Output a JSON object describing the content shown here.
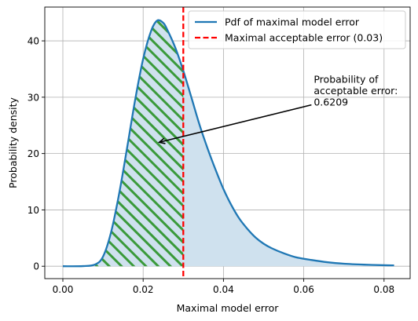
{
  "chart_data": {
    "type": "area",
    "title": "",
    "xlabel": "Maximal model error",
    "ylabel": "Probability density",
    "xlim": [
      -0.0045,
      0.0865
    ],
    "ylim": [
      -2.2,
      46
    ],
    "xticks": [
      0.0,
      0.02,
      0.04,
      0.06,
      0.08
    ],
    "xtick_labels": [
      "0.00",
      "0.02",
      "0.04",
      "0.06",
      "0.08"
    ],
    "yticks": [
      0,
      10,
      20,
      30,
      40
    ],
    "ytick_labels": [
      "0",
      "10",
      "20",
      "30",
      "40"
    ],
    "grid": true,
    "legend_position": "upper right",
    "series": [
      {
        "name": "Pdf of maximal model error",
        "color": "#1f77b4",
        "points": [
          [
            0.0,
            0.0
          ],
          [
            0.005,
            0.02
          ],
          [
            0.008,
            0.3
          ],
          [
            0.01,
            1.7
          ],
          [
            0.012,
            6.0
          ],
          [
            0.014,
            12.8
          ],
          [
            0.016,
            21.0
          ],
          [
            0.018,
            29.5
          ],
          [
            0.02,
            36.8
          ],
          [
            0.022,
            41.8
          ],
          [
            0.0235,
            43.6
          ],
          [
            0.025,
            43.2
          ],
          [
            0.026,
            42.0
          ],
          [
            0.028,
            38.8
          ],
          [
            0.03,
            34.7
          ],
          [
            0.032,
            30.0
          ],
          [
            0.034,
            25.2
          ],
          [
            0.036,
            21.0
          ],
          [
            0.038,
            17.2
          ],
          [
            0.04,
            13.7
          ],
          [
            0.042,
            10.8
          ],
          [
            0.044,
            8.4
          ],
          [
            0.046,
            6.6
          ],
          [
            0.048,
            5.1
          ],
          [
            0.05,
            4.0
          ],
          [
            0.052,
            3.2
          ],
          [
            0.055,
            2.3
          ],
          [
            0.058,
            1.6
          ],
          [
            0.062,
            1.1
          ],
          [
            0.066,
            0.7
          ],
          [
            0.07,
            0.45
          ],
          [
            0.075,
            0.28
          ],
          [
            0.08,
            0.18
          ],
          [
            0.0825,
            0.15
          ]
        ]
      }
    ],
    "threshold": {
      "name": "Maximal acceptable error (0.03)",
      "x": 0.03,
      "color": "#ff0000"
    },
    "fill_color": "#cfe1ee",
    "hatch_color": "#3a9a3a",
    "annotation": {
      "text_lines": [
        "Probability of",
        "acceptable error:",
        "0.6209"
      ],
      "text_x": 0.0625,
      "text_y": 28.5,
      "arrow_to_x": 0.024,
      "arrow_to_y": 22
    }
  }
}
